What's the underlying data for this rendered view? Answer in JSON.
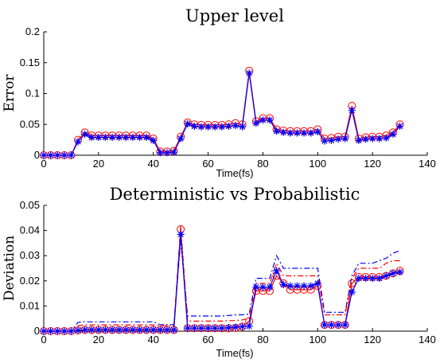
{
  "colors": {
    "red": "#ff0000",
    "blue": "#0000ff",
    "axis": "#000000"
  },
  "chart_data": [
    {
      "type": "line",
      "title": "Upper level",
      "xlabel": "Time(fs)",
      "ylabel": "Error",
      "xlim": [
        0,
        140
      ],
      "ylim": [
        0,
        0.2
      ],
      "xticks": [
        0,
        20,
        40,
        60,
        80,
        100,
        120,
        140
      ],
      "yticks": [
        0,
        0.05,
        0.1,
        0.15,
        0.2
      ],
      "xticklabels": [
        "0",
        "20",
        "40",
        "60",
        "80",
        "100",
        "120",
        "140"
      ],
      "yticklabels": [
        "0",
        "0.05",
        "0.1",
        "0.15",
        "0.2"
      ],
      "x": [
        0,
        2.5,
        5,
        7.5,
        10,
        12.5,
        15,
        17.5,
        20,
        22.5,
        25,
        27.5,
        30,
        32.5,
        35,
        37.5,
        40,
        42.5,
        45,
        47.5,
        50,
        52.5,
        55,
        57.5,
        60,
        62.5,
        65,
        67.5,
        70,
        72.5,
        75,
        77.5,
        80,
        82.5,
        85,
        87.5,
        90,
        92.5,
        95,
        97.5,
        100,
        102.5,
        105,
        107.5,
        110,
        112.5,
        115,
        117.5,
        120,
        122.5,
        125,
        127.5,
        130
      ],
      "series": [
        {
          "color": "#ff0000",
          "style": "solid",
          "marker": "circle",
          "values": [
            0,
            0,
            0,
            0,
            0,
            0.025,
            0.037,
            0.032,
            0.032,
            0.032,
            0.032,
            0.032,
            0.032,
            0.032,
            0.032,
            0.032,
            0.027,
            0.006,
            0.006,
            0.007,
            0.03,
            0.053,
            0.05,
            0.049,
            0.049,
            0.049,
            0.049,
            0.05,
            0.052,
            0.05,
            0.137,
            0.055,
            0.06,
            0.06,
            0.042,
            0.04,
            0.039,
            0.039,
            0.039,
            0.039,
            0.042,
            0.027,
            0.028,
            0.03,
            0.03,
            0.08,
            0.027,
            0.029,
            0.03,
            0.03,
            0.032,
            0.037,
            0.05
          ]
        },
        {
          "color": "#0000ff",
          "style": "solid",
          "marker": "star",
          "values": [
            0,
            0,
            0,
            0,
            0,
            0.022,
            0.034,
            0.029,
            0.029,
            0.029,
            0.029,
            0.029,
            0.029,
            0.029,
            0.029,
            0.029,
            0.024,
            0.004,
            0.004,
            0.005,
            0.027,
            0.051,
            0.047,
            0.046,
            0.046,
            0.046,
            0.046,
            0.047,
            0.048,
            0.046,
            0.133,
            0.052,
            0.057,
            0.057,
            0.039,
            0.037,
            0.036,
            0.036,
            0.036,
            0.036,
            0.038,
            0.023,
            0.024,
            0.026,
            0.027,
            0.073,
            0.024,
            0.026,
            0.027,
            0.027,
            0.028,
            0.034,
            0.047
          ]
        }
      ]
    },
    {
      "type": "line",
      "title": "Deterministic vs Probabilistic",
      "xlabel": "Time(fs)",
      "ylabel": "Deviation",
      "xlim": [
        0,
        140
      ],
      "ylim": [
        0,
        0.05
      ],
      "xticks": [
        0,
        20,
        40,
        60,
        80,
        100,
        120,
        140
      ],
      "yticks": [
        0,
        0.01,
        0.02,
        0.03,
        0.04,
        0.05
      ],
      "xticklabels": [
        "0",
        "20",
        "40",
        "60",
        "80",
        "100",
        "120",
        "140"
      ],
      "yticklabels": [
        "0",
        "0.01",
        "0.02",
        "0.03",
        "0.04",
        "0.05"
      ],
      "x": [
        0,
        2.5,
        5,
        7.5,
        10,
        12.5,
        15,
        17.5,
        20,
        22.5,
        25,
        27.5,
        30,
        32.5,
        35,
        37.5,
        40,
        42.5,
        45,
        47.5,
        50,
        52.5,
        55,
        57.5,
        60,
        62.5,
        65,
        67.5,
        70,
        72.5,
        75,
        77.5,
        80,
        82.5,
        85,
        87.5,
        90,
        92.5,
        95,
        97.5,
        100,
        102.5,
        105,
        107.5,
        110,
        112.5,
        115,
        117.5,
        120,
        122.5,
        125,
        127.5,
        130
      ],
      "series": [
        {
          "color": "#0000ff",
          "style": "dashdot",
          "marker": "none",
          "values": [
            0,
            0,
            0,
            0,
            0,
            0.0035,
            0.0037,
            0.0037,
            0.0037,
            0.0037,
            0.0037,
            0.0037,
            0.0037,
            0.0037,
            0.0037,
            0.0037,
            0.0037,
            0.0026,
            0.0026,
            0.0026,
            0.036,
            0.006,
            0.006,
            0.006,
            0.006,
            0.006,
            0.006,
            0.0062,
            0.0065,
            0.0065,
            0.0068,
            0.021,
            0.021,
            0.021,
            0.03,
            0.025,
            0.025,
            0.025,
            0.025,
            0.025,
            0.025,
            0.0075,
            0.0075,
            0.0075,
            0.0075,
            0.022,
            0.027,
            0.027,
            0.027,
            0.028,
            0.029,
            0.031,
            0.032
          ]
        },
        {
          "color": "#ff0000",
          "style": "dashdot",
          "marker": "none",
          "values": [
            0,
            0,
            0,
            0,
            0,
            0.0022,
            0.0025,
            0.0025,
            0.0025,
            0.0025,
            0.0025,
            0.0025,
            0.0025,
            0.0025,
            0.0025,
            0.0025,
            0.0025,
            0.0022,
            0.0022,
            0.0022,
            0.042,
            0.004,
            0.004,
            0.004,
            0.004,
            0.004,
            0.004,
            0.0042,
            0.0042,
            0.0045,
            0.005,
            0.019,
            0.019,
            0.019,
            0.027,
            0.022,
            0.022,
            0.022,
            0.022,
            0.022,
            0.022,
            0.0065,
            0.0065,
            0.0065,
            0.0065,
            0.021,
            0.025,
            0.025,
            0.025,
            0.025,
            0.027,
            0.028,
            0.028
          ]
        },
        {
          "color": "#ff0000",
          "style": "solid",
          "marker": "circle",
          "values": [
            0,
            0,
            0,
            0,
            0,
            0.0003,
            0.0005,
            0.0005,
            0.0005,
            0.0005,
            0.0005,
            0.0005,
            0.0005,
            0.0005,
            0.0005,
            0.0005,
            0.0005,
            0.0005,
            0.0005,
            0.0005,
            0.0405,
            0.0012,
            0.0012,
            0.0012,
            0.0012,
            0.0012,
            0.0012,
            0.0012,
            0.0013,
            0.0018,
            0.004,
            0.016,
            0.016,
            0.016,
            0.022,
            0.019,
            0.0165,
            0.0165,
            0.0165,
            0.0165,
            0.018,
            0.0025,
            0.0025,
            0.0025,
            0.0025,
            0.019,
            0.0215,
            0.0215,
            0.0215,
            0.0215,
            0.022,
            0.023,
            0.024
          ]
        },
        {
          "color": "#0000ff",
          "style": "solid",
          "marker": "star",
          "values": [
            0,
            0,
            0,
            0,
            0,
            0.0003,
            0.0005,
            0.0005,
            0.0005,
            0.0005,
            0.0005,
            0.0005,
            0.0005,
            0.0005,
            0.0005,
            0.0005,
            0.0005,
            0.0005,
            0.0005,
            0.0005,
            0.0385,
            0.0012,
            0.0012,
            0.0012,
            0.0012,
            0.0012,
            0.0012,
            0.0014,
            0.0016,
            0.0018,
            0.002,
            0.0175,
            0.0175,
            0.0175,
            0.024,
            0.0185,
            0.018,
            0.018,
            0.018,
            0.018,
            0.019,
            0.0025,
            0.0025,
            0.0025,
            0.0025,
            0.0155,
            0.021,
            0.021,
            0.021,
            0.021,
            0.022,
            0.023,
            0.0235
          ]
        }
      ]
    }
  ]
}
